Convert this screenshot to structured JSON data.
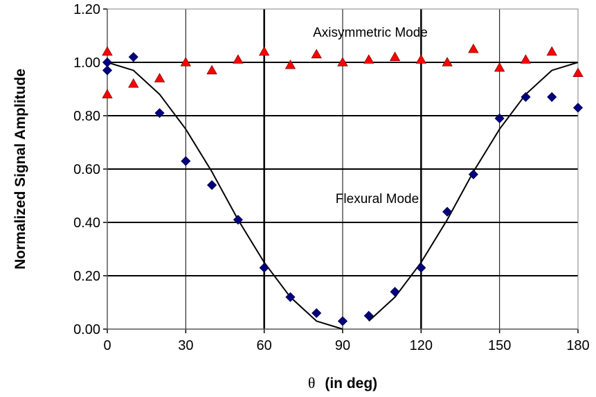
{
  "chart_data": {
    "type": "scatter",
    "title": "",
    "xlabel_symbol": "θ",
    "xlabel": "(in deg)",
    "ylabel": "Normalized Signal Amplitude",
    "xlim": [
      0,
      180
    ],
    "ylim": [
      0,
      1.2
    ],
    "x_ticks": [
      "0",
      "30",
      "60",
      "90",
      "120",
      "150",
      "180"
    ],
    "y_ticks": [
      "0.00",
      "0.20",
      "0.40",
      "0.60",
      "0.80",
      "1.00",
      "1.20"
    ],
    "grid": true,
    "annotations": {
      "axisymmetric": "Axisymmetric Mode",
      "flexural": "Flexural Mode"
    },
    "series": [
      {
        "marker": "triangle",
        "color": "#ff0000",
        "points": [
          [
            0,
            1.04
          ],
          [
            0,
            0.88
          ],
          [
            10,
            0.92
          ],
          [
            20,
            0.94
          ],
          [
            30,
            1.0
          ],
          [
            40,
            0.97
          ],
          [
            50,
            1.01
          ],
          [
            60,
            1.04
          ],
          [
            70,
            0.99
          ],
          [
            80,
            1.03
          ],
          [
            90,
            1.0
          ],
          [
            100,
            1.01
          ],
          [
            110,
            1.02
          ],
          [
            120,
            1.01
          ],
          [
            130,
            1.0
          ],
          [
            140,
            1.05
          ],
          [
            150,
            0.98
          ],
          [
            160,
            1.01
          ],
          [
            170,
            1.04
          ],
          [
            180,
            0.96
          ]
        ]
      },
      {
        "marker": "diamond",
        "color": "#000080",
        "points": [
          [
            0,
            1.0
          ],
          [
            0,
            0.97
          ],
          [
            10,
            1.02
          ],
          [
            20,
            0.81
          ],
          [
            30,
            0.63
          ],
          [
            40,
            0.54
          ],
          [
            50,
            0.41
          ],
          [
            60,
            0.23
          ],
          [
            70,
            0.12
          ],
          [
            80,
            0.06
          ],
          [
            90,
            0.03
          ],
          [
            100,
            0.05
          ],
          [
            110,
            0.14
          ],
          [
            120,
            0.23
          ],
          [
            130,
            0.44
          ],
          [
            140,
            0.58
          ],
          [
            150,
            0.79
          ],
          [
            160,
            0.87
          ],
          [
            170,
            0.87
          ],
          [
            180,
            0.83
          ]
        ]
      }
    ],
    "reference_lines": [
      {
        "name": "axisymmetric-fit",
        "points": [
          [
            0,
            1.0
          ],
          [
            180,
            1.0
          ]
        ]
      },
      {
        "name": "flexural-fit-left",
        "points": [
          [
            0,
            1.0
          ],
          [
            10,
            0.97
          ],
          [
            20,
            0.88
          ],
          [
            30,
            0.75
          ],
          [
            40,
            0.59
          ],
          [
            50,
            0.41
          ],
          [
            60,
            0.25
          ],
          [
            70,
            0.12
          ],
          [
            80,
            0.03
          ],
          [
            90,
            0.0
          ]
        ]
      },
      {
        "name": "flexural-fit-right",
        "points": [
          [
            100,
            0.03
          ],
          [
            110,
            0.12
          ],
          [
            120,
            0.25
          ],
          [
            130,
            0.41
          ],
          [
            140,
            0.59
          ],
          [
            150,
            0.75
          ],
          [
            160,
            0.88
          ],
          [
            170,
            0.97
          ],
          [
            180,
            1.0
          ]
        ]
      }
    ]
  }
}
